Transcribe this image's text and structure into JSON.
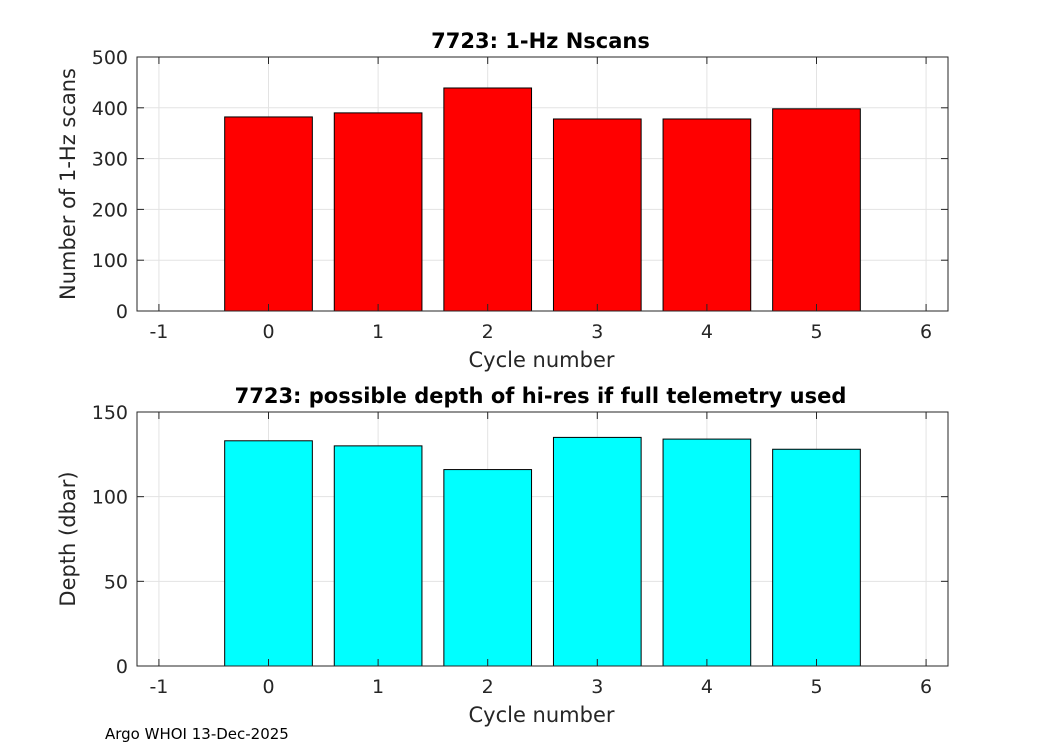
{
  "chart_data": [
    {
      "type": "bar",
      "title": "7723: 1-Hz Nscans",
      "xlabel": "Cycle number",
      "ylabel": "Number of 1-Hz scans",
      "categories": [
        0,
        1,
        2,
        3,
        4,
        5
      ],
      "values": [
        382,
        390,
        439,
        378,
        378,
        398
      ],
      "xlim": [
        -1.2,
        6.2
      ],
      "xticks": [
        -1,
        0,
        1,
        2,
        3,
        4,
        5,
        6
      ],
      "ylim": [
        0,
        500
      ],
      "yticks": [
        0,
        100,
        200,
        300,
        400,
        500
      ],
      "bar_color": "#ff0000",
      "grid": true
    },
    {
      "type": "bar",
      "title": "7723: possible depth of hi-res if full telemetry used",
      "xlabel": "Cycle number",
      "ylabel": "Depth (dbar)",
      "categories": [
        0,
        1,
        2,
        3,
        4,
        5
      ],
      "values": [
        133,
        130,
        116,
        135,
        134,
        128
      ],
      "xlim": [
        -1.2,
        6.2
      ],
      "xticks": [
        -1,
        0,
        1,
        2,
        3,
        4,
        5,
        6
      ],
      "ylim": [
        0,
        150
      ],
      "yticks": [
        0,
        50,
        100,
        150
      ],
      "bar_color": "#00ffff",
      "grid": true
    }
  ],
  "footer": "Argo WHOI 13-Dec-2025"
}
